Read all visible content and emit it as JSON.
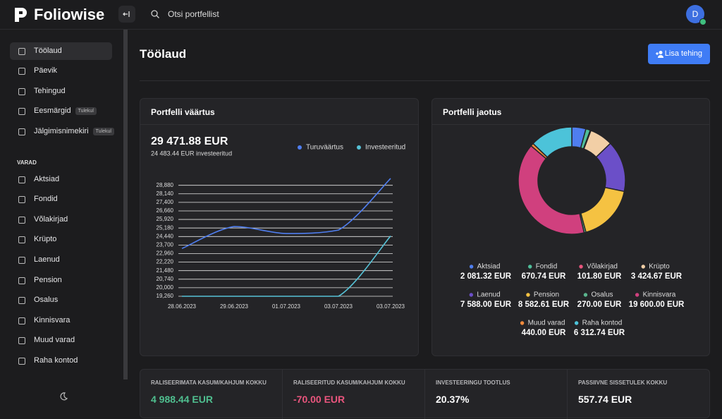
{
  "header": {
    "brand": "Foliowise",
    "search_placeholder": "Otsi portfellist",
    "avatar": "D"
  },
  "sidebar": {
    "nav": [
      {
        "label": "Töölaud"
      },
      {
        "label": "Päevik"
      },
      {
        "label": "Tehingud"
      },
      {
        "label": "Eesmärgid",
        "badge": "Tulekul"
      },
      {
        "label": "Jälgimisnimekiri",
        "badge": "Tulekul"
      }
    ],
    "section_title": "VARAD",
    "assets": [
      "Aktsiad",
      "Fondid",
      "Võlakirjad",
      "Krüpto",
      "Laenud",
      "Pension",
      "Osalus",
      "Kinnisvara",
      "Muud varad",
      "Raha kontod"
    ]
  },
  "page": {
    "title": "Töölaud",
    "button": "Lisa tehing"
  },
  "chart_data": [
    {
      "type": "line",
      "title": "Portfelli väärtus",
      "headline": "29 471.88 EUR",
      "subheadline": "24 483.44 EUR investeeritud",
      "categories": [
        "28.06.2023",
        "29.06.2023",
        "01.07.2023",
        "03.07.2023",
        "03.07.2023"
      ],
      "series": [
        {
          "name": "Turuväärtus",
          "color": "#4f7ef0",
          "values": [
            23400,
            25300,
            24700,
            25000,
            29471.88
          ]
        },
        {
          "name": "Investeeritud",
          "color": "#56c2d6",
          "values": [
            19260,
            19260,
            19260,
            19260,
            24483.44
          ]
        }
      ],
      "ylim": [
        19260,
        29900
      ],
      "yticks": [
        {
          "value": 19260,
          "label": "19,260"
        },
        {
          "value": 20000,
          "label": "20,000"
        },
        {
          "value": 20740,
          "label": "20,740"
        },
        {
          "value": 21480,
          "label": "21,480"
        },
        {
          "value": 22220,
          "label": "22,220"
        },
        {
          "value": 22960,
          "label": "22,960"
        },
        {
          "value": 23700,
          "label": "23,700"
        },
        {
          "value": 24440,
          "label": "24,440"
        },
        {
          "value": 25180,
          "label": "25,180"
        },
        {
          "value": 25920,
          "label": "25,920"
        },
        {
          "value": 26660,
          "label": "26,660"
        },
        {
          "value": 27400,
          "label": "27,400"
        },
        {
          "value": 28140,
          "label": "28,140"
        },
        {
          "value": 28880,
          "label": "28,880"
        }
      ],
      "grid": true,
      "legend": "top-right"
    },
    {
      "type": "pie",
      "title": "Portfelli jaotus",
      "categories": [
        "Aktsiad",
        "Fondid",
        "Võlakirjad",
        "Krüpto",
        "Laenud",
        "Pension",
        "Osalus",
        "Kinnisvara",
        "Muud varad",
        "Raha kontod"
      ],
      "values": [
        2081.32,
        670.74,
        101.8,
        3424.67,
        7588.0,
        8582.61,
        270.0,
        19600.0,
        440.0,
        6312.74
      ],
      "value_labels": [
        "2 081.32 EUR",
        "670.74 EUR",
        "101.80 EUR",
        "3 424.67 EUR",
        "7 588.00 EUR",
        "8 582.61 EUR",
        "270.00 EUR",
        "19 600.00 EUR",
        "440.00 EUR",
        "6 312.74 EUR"
      ],
      "colors": [
        "#4f7ef0",
        "#4fbf9a",
        "#e9557d",
        "#f2cfa6",
        "#6b4fc8",
        "#f5c242",
        "#5ab58e",
        "#d0407e",
        "#f08a3c",
        "#4cc3d9"
      ],
      "legend": "bottom"
    }
  ],
  "stats": [
    {
      "label": "RALISEERIMATA KASUM/KAHJUM KOKKU",
      "value": "4 988.44 EUR"
    },
    {
      "label": "RALISEERITUD KASUM/KAHJUM KOKKU",
      "value": "-70.00 EUR"
    },
    {
      "label": "INVESTEERINGU TOOTLUS",
      "value": "20.37%"
    },
    {
      "label": "PASSIIVNE SISSETULEK KOKKU",
      "value": "557.74 EUR"
    }
  ]
}
